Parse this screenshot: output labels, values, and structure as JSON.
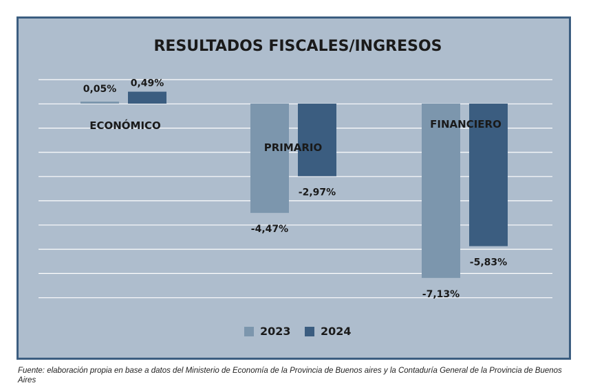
{
  "chart_data": {
    "type": "bar",
    "title": "RESULTADOS FISCALES/INGRESOS",
    "categories": [
      "ECONÓMICO",
      "PRIMARIO",
      "FINANCIERO"
    ],
    "series": [
      {
        "name": "2023",
        "values": [
          0.05,
          -4.47,
          -7.13
        ],
        "labels": [
          "0,05%",
          "-4,47%",
          "-7,13%"
        ]
      },
      {
        "name": "2024",
        "values": [
          0.49,
          -2.97,
          -5.83
        ],
        "labels": [
          "0,49%",
          "-2,97%",
          "-5,83%"
        ]
      }
    ],
    "xlabel": "",
    "ylabel": "",
    "ylim": [
      -8,
      1
    ],
    "grid": true,
    "legend": "bottom"
  },
  "colors": {
    "series_2023": "#7c96ad",
    "series_2024": "#3b5d80",
    "background": "#aebdcd",
    "frame": "#3b5d80",
    "grid": "#ffffff"
  },
  "source": "Fuente: elaboración propia en base a datos del Ministerio de Economía de la Provincia de Buenos aires y la Contaduría General de la Provincia de Buenos Aires"
}
